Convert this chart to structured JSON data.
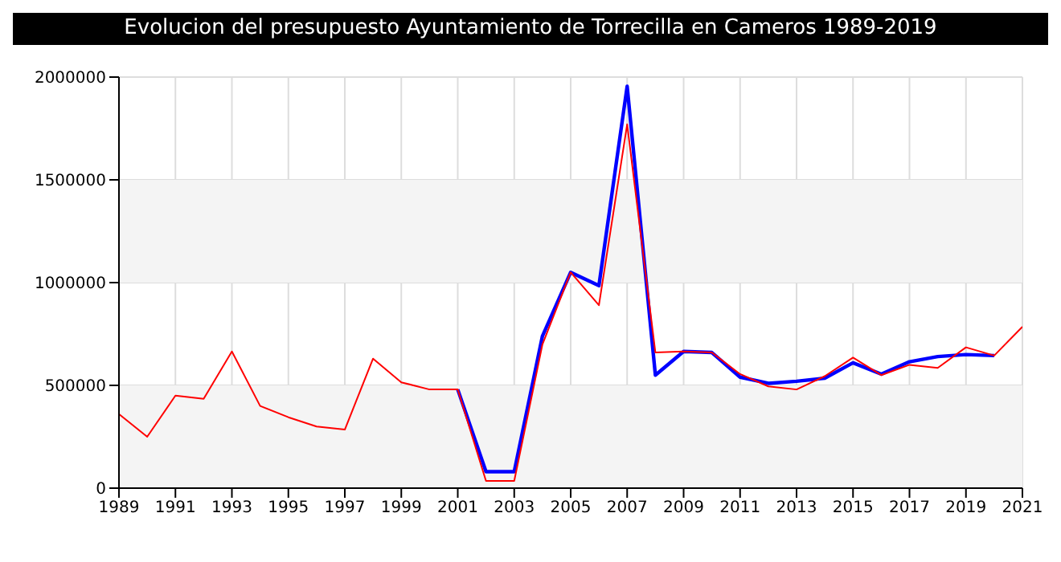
{
  "chart_data": {
    "type": "line",
    "title": "Evolucion del presupuesto Ayuntamiento de Torrecilla en Cameros 1989-2019",
    "x": [
      1989,
      1990,
      1991,
      1992,
      1993,
      1994,
      1995,
      1996,
      1997,
      1998,
      1999,
      2000,
      2001,
      2002,
      2003,
      2004,
      2005,
      2006,
      2007,
      2008,
      2009,
      2010,
      2011,
      2012,
      2013,
      2014,
      2015,
      2016,
      2017,
      2018,
      2019,
      2020,
      2021
    ],
    "series": [
      {
        "color": "#0000ff",
        "values": [
          null,
          null,
          null,
          null,
          null,
          null,
          null,
          null,
          null,
          null,
          null,
          null,
          480000,
          80000,
          80000,
          740000,
          1050000,
          985000,
          1955000,
          550000,
          665000,
          660000,
          540000,
          510000,
          520000,
          535000,
          610000,
          555000,
          615000,
          640000,
          650000,
          645000,
          null
        ]
      },
      {
        "color": "#ff0000",
        "values": [
          360000,
          250000,
          450000,
          435000,
          665000,
          400000,
          345000,
          300000,
          285000,
          630000,
          515000,
          480000,
          480000,
          35000,
          35000,
          700000,
          1050000,
          890000,
          1770000,
          660000,
          665000,
          660000,
          555000,
          495000,
          480000,
          545000,
          635000,
          550000,
          600000,
          585000,
          685000,
          645000,
          785000
        ]
      }
    ],
    "xlim": [
      1989,
      2021
    ],
    "xticks": [
      1989,
      1991,
      1993,
      1995,
      1997,
      1999,
      2001,
      2003,
      2005,
      2007,
      2009,
      2011,
      2013,
      2015,
      2017,
      2019,
      2021
    ],
    "ylim": [
      0,
      2000000
    ],
    "yticks": [
      0,
      500000,
      1000000,
      1500000,
      2000000
    ],
    "bands": [
      {
        "axis": "y",
        "from": 0,
        "to": 500000,
        "color": "#f4f4f4"
      },
      {
        "axis": "y",
        "from": 1000000,
        "to": 1500000,
        "color": "#f4f4f4"
      }
    ],
    "grid": true,
    "legend": false,
    "marker": "none",
    "line_style": "solid"
  }
}
